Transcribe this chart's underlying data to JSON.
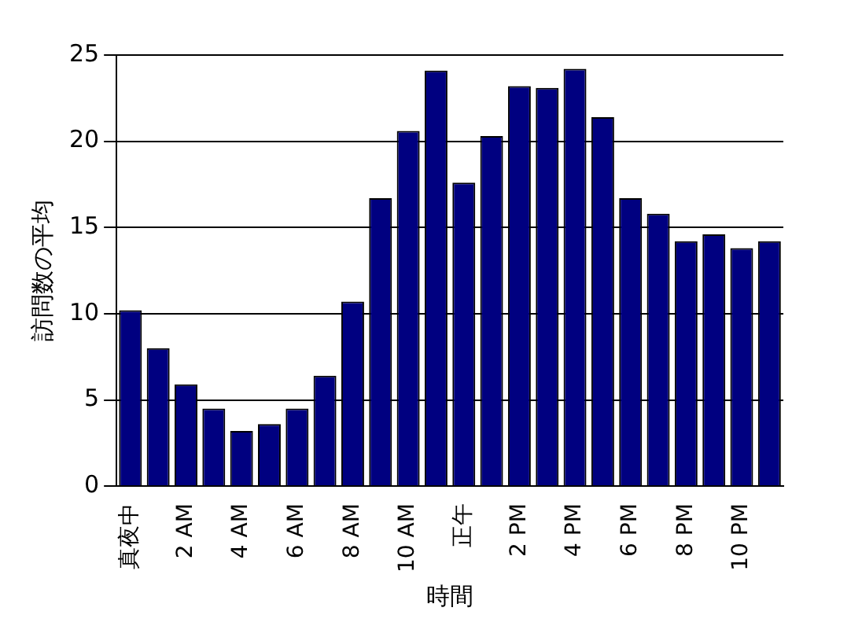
{
  "chart_data": {
    "type": "bar",
    "xlabel": "時間",
    "ylabel": "訪問数の平均",
    "categories": [
      "真夜中",
      null,
      "2 AM",
      null,
      "4 AM",
      null,
      "6 AM",
      null,
      "8 AM",
      null,
      "10 AM",
      null,
      "正午",
      null,
      "2 PM",
      null,
      "4 PM",
      null,
      "6 PM",
      null,
      "8 PM",
      null,
      "10 PM",
      null
    ],
    "values": [
      10.2,
      8.0,
      5.9,
      4.5,
      3.2,
      3.6,
      4.5,
      6.4,
      10.7,
      16.7,
      20.6,
      24.1,
      17.6,
      20.3,
      23.2,
      23.1,
      24.2,
      21.4,
      16.7,
      15.8,
      14.2,
      14.6,
      13.8,
      14.2
    ],
    "color": "#000080",
    "ylim": [
      0,
      25
    ],
    "yticks": [
      0,
      5,
      10,
      15,
      20,
      25
    ],
    "grid": "y",
    "legend": false
  }
}
